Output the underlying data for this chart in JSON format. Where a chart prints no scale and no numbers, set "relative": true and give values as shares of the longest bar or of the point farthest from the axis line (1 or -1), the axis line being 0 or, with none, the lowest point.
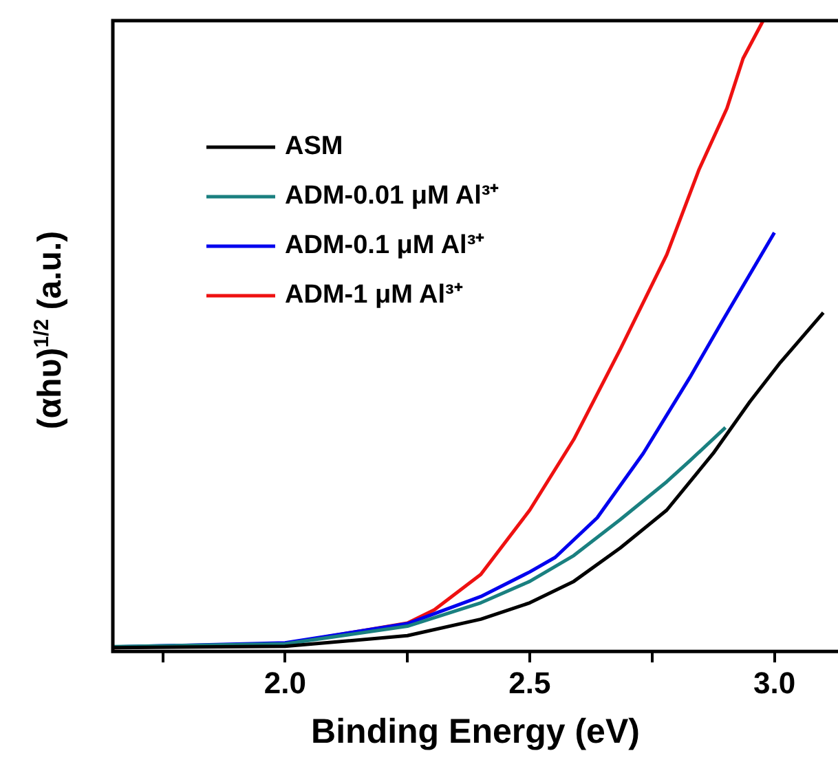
{
  "chart_data": {
    "type": "line",
    "relative": true,
    "xlabel": "Binding Energy (eV)",
    "ylabel": "(αhυ)$^{1/2}$ (a.u.)",
    "xlim": [
      1.648,
      3.13
    ],
    "xticks": [
      {
        "value": 1.75,
        "label": null
      },
      {
        "value": 2,
        "label": "2.0"
      },
      {
        "value": 2.25,
        "label": null
      },
      2.5,
      {
        "value": 2.75,
        "label": null
      },
      {
        "value": 3,
        "label": "3.0"
      }
    ],
    "legend": "top left",
    "grid": false,
    "marker": "none",
    "line_style": "solid",
    "series": [
      {
        "name": "ASM",
        "color": "#000000",
        "x": [
          1.65,
          2.0,
          2.25,
          2.4,
          2.5,
          2.59,
          2.685,
          2.78,
          2.875,
          2.95,
          3.01,
          3.1
        ],
        "values": [
          0.006,
          0.008,
          0.025,
          0.051,
          0.077,
          0.111,
          0.164,
          0.224,
          0.314,
          0.396,
          0.456,
          0.537
        ]
      },
      {
        "name": "ADM-0.01 μM Al³⁺",
        "color": "#1a8080",
        "x": [
          1.65,
          2.0,
          2.25,
          2.4,
          2.5,
          2.59,
          2.685,
          2.78,
          2.827,
          2.9
        ],
        "values": [
          0.0075,
          0.012,
          0.04,
          0.077,
          0.111,
          0.152,
          0.209,
          0.269,
          0.302,
          0.355
        ]
      },
      {
        "name": "ADM-0.1 μM Al³⁺",
        "color": "#0000ee",
        "x": [
          1.65,
          2.0,
          2.25,
          2.4,
          2.5,
          2.552,
          2.638,
          2.732,
          2.827,
          2.894,
          3.0
        ],
        "values": [
          0.007,
          0.0135,
          0.044,
          0.087,
          0.126,
          0.149,
          0.212,
          0.314,
          0.434,
          0.524,
          0.664
        ]
      },
      {
        "name": "ADM-1 μM Al³⁺",
        "color": "#ee1111",
        "x": [
          1.65,
          2.0,
          2.25,
          2.305,
          2.4,
          2.5,
          2.59,
          2.685,
          2.78,
          2.846,
          2.903,
          2.936,
          2.977
        ],
        "values": [
          0.006,
          0.012,
          0.045,
          0.066,
          0.122,
          0.224,
          0.336,
          0.479,
          0.629,
          0.764,
          0.861,
          0.94,
          1.0
        ]
      }
    ]
  }
}
